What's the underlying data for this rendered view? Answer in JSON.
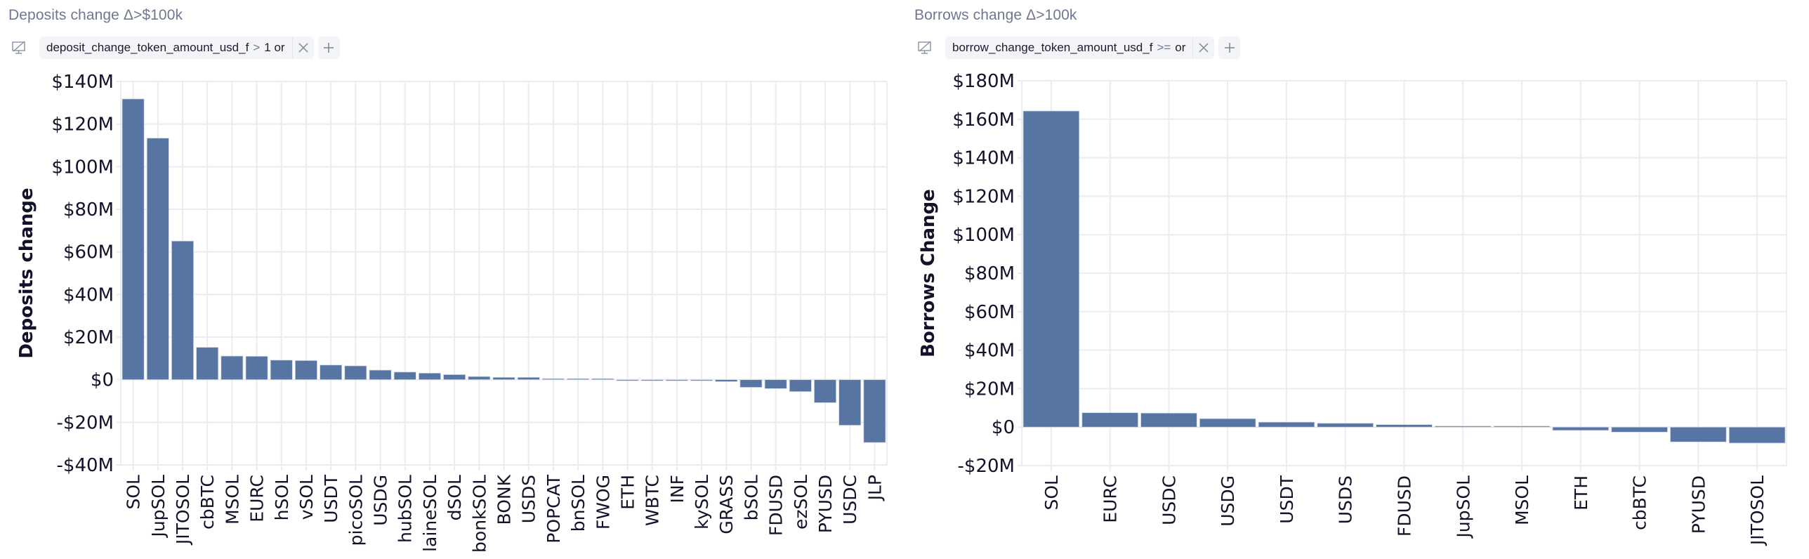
{
  "panels": [
    {
      "title": "Deposits change Δ>$100k",
      "filter": {
        "icon": "display-off-icon",
        "field": "deposit_change_token_amount_usd_f",
        "operator": ">",
        "value": "1",
        "suffix": "or",
        "remove_icon": "close-icon",
        "add_icon": "plus-icon"
      }
    },
    {
      "title": "Borrows change Δ>100k",
      "filter": {
        "icon": "display-off-icon",
        "field": "borrow_change_token_amount_usd_f",
        "operator": ">=",
        "value": "",
        "suffix": "or",
        "remove_icon": "close-icon",
        "add_icon": "plus-icon"
      }
    }
  ],
  "colors": {
    "bar": "#5675a3",
    "grid": "#ebecf2",
    "title": "#6f7792",
    "text": "#12122a"
  },
  "chart_data": [
    {
      "type": "bar",
      "title": "Deposits change Δ>$100k",
      "xlabel": "",
      "ylabel": "Deposits change",
      "ylim": [
        -40,
        140
      ],
      "yticks": [
        -40,
        -20,
        0,
        20,
        40,
        60,
        80,
        100,
        120,
        140
      ],
      "ytick_labels": [
        "-$40M",
        "-$20M",
        "$0",
        "$20M",
        "$40M",
        "$60M",
        "$80M",
        "$100M",
        "$120M",
        "$140M"
      ],
      "unit": "USD millions",
      "grid": true,
      "categories": [
        "SOL",
        "JupSOL",
        "JITOSOL",
        "cbBTC",
        "MSOL",
        "EURC",
        "hSOL",
        "vSOL",
        "USDT",
        "picoSOL",
        "USDG",
        "hubSOL",
        "laineSOL",
        "dSOL",
        "bonkSOL",
        "BONK",
        "USDS",
        "POPCAT",
        "bnSOL",
        "FWOG",
        "ETH",
        "WBTC",
        "INF",
        "kySOL",
        "GRASS",
        "bSOL",
        "FDUSD",
        "ezSOL",
        "PYUSD",
        "USDC",
        "JLP"
      ],
      "values": [
        131.8,
        113.4,
        65.1,
        15.2,
        11.1,
        11.0,
        9.2,
        9.0,
        6.9,
        6.5,
        4.5,
        3.6,
        3.1,
        2.4,
        1.5,
        1.1,
        1.1,
        0.4,
        0.1,
        0.1,
        -0.2,
        -0.3,
        -0.3,
        -0.4,
        -0.9,
        -3.6,
        -4.2,
        -5.6,
        -10.8,
        -21.4,
        -29.5
      ]
    },
    {
      "type": "bar",
      "title": "Borrows change Δ>100k",
      "xlabel": "",
      "ylabel": "Borrows Change",
      "ylim": [
        -20,
        180
      ],
      "yticks": [
        -20,
        0,
        20,
        40,
        60,
        80,
        100,
        120,
        140,
        160,
        180
      ],
      "ytick_labels": [
        "-$20M",
        "$0",
        "$20M",
        "$40M",
        "$60M",
        "$80M",
        "$100M",
        "$120M",
        "$140M",
        "$160M",
        "$180M"
      ],
      "unit": "USD millions",
      "grid": true,
      "categories": [
        "SOL",
        "EURC",
        "USDC",
        "USDG",
        "USDT",
        "USDS",
        "FDUSD",
        "JupSOL",
        "MSOL",
        "ETH",
        "cbBTC",
        "PYUSD",
        "JITOSOL"
      ],
      "values": [
        164.3,
        7.5,
        7.3,
        4.4,
        2.6,
        2.0,
        1.3,
        0.2,
        0.05,
        -1.7,
        -2.6,
        -7.7,
        -8.3
      ]
    }
  ]
}
